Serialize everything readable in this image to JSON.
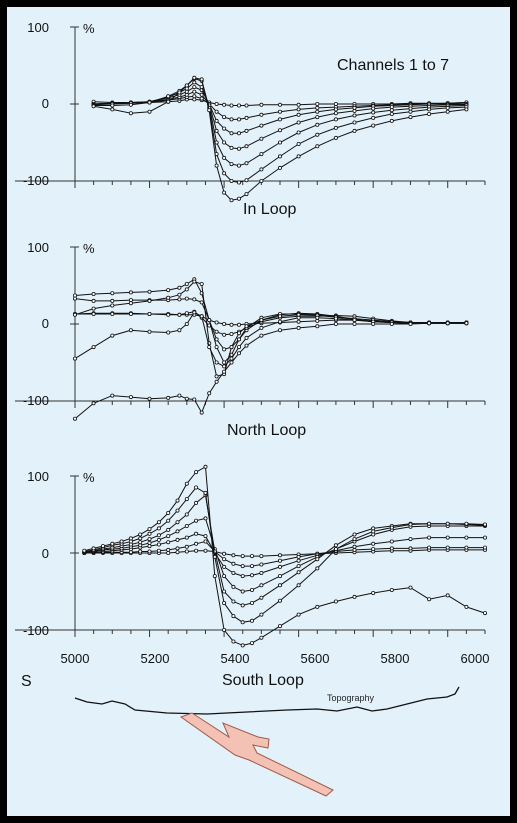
{
  "colors": {
    "background": "#e3f1fa",
    "line": "#111111",
    "body_fill": "#f4c2b5",
    "body_stroke": "#a05a4a"
  },
  "topography_label": "Topography",
  "direction_label": "S",
  "chart_data": [
    {
      "type": "line",
      "title": "In Loop",
      "ylabel": "%",
      "annotation": "Channels 1 to 7",
      "xlim": [
        5000,
        6100
      ],
      "ylim": [
        -100,
        100
      ],
      "yticks": [
        100,
        0,
        -100
      ],
      "grid": false,
      "x": [
        5050,
        5100,
        5150,
        5200,
        5250,
        5280,
        5300,
        5320,
        5340,
        5360,
        5380,
        5400,
        5420,
        5440,
        5460,
        5500,
        5550,
        5600,
        5650,
        5700,
        5750,
        5800,
        5850,
        5900,
        5950,
        6000,
        6050
      ],
      "series": [
        {
          "values": [
            3,
            2,
            2,
            2,
            3,
            4,
            6,
            6,
            5,
            2,
            0,
            -1,
            -2,
            -2,
            -2,
            -1,
            -1,
            -1,
            0,
            0,
            0,
            0,
            0,
            1,
            1,
            1,
            2
          ]
        },
        {
          "values": [
            0,
            1,
            1,
            2,
            5,
            7,
            9,
            10,
            7,
            0,
            -10,
            -17,
            -20,
            -20,
            -18,
            -14,
            -10,
            -7,
            -5,
            -4,
            -3,
            -2,
            -1,
            0,
            0,
            1,
            2
          ]
        },
        {
          "values": [
            0,
            1,
            2,
            3,
            6,
            9,
            12,
            16,
            12,
            0,
            -22,
            -32,
            -38,
            -38,
            -35,
            -28,
            -20,
            -14,
            -10,
            -7,
            -5,
            -3,
            -2,
            -1,
            0,
            0,
            0
          ]
        },
        {
          "values": [
            0,
            1,
            2,
            3,
            8,
            12,
            16,
            22,
            18,
            0,
            -35,
            -50,
            -57,
            -58,
            -55,
            -45,
            -34,
            -24,
            -17,
            -12,
            -9,
            -6,
            -4,
            -3,
            -2,
            -1,
            -1
          ]
        },
        {
          "values": [
            -1,
            0,
            1,
            3,
            9,
            15,
            20,
            28,
            22,
            -2,
            -50,
            -70,
            -78,
            -80,
            -77,
            -65,
            -50,
            -37,
            -27,
            -20,
            -15,
            -11,
            -8,
            -6,
            -4,
            -3,
            -2
          ]
        },
        {
          "values": [
            -2,
            -2,
            -1,
            2,
            10,
            17,
            24,
            33,
            30,
            -5,
            -65,
            -90,
            -100,
            -102,
            -99,
            -85,
            -68,
            -52,
            -40,
            -31,
            -24,
            -18,
            -13,
            -10,
            -7,
            -5,
            -4
          ]
        },
        {
          "values": [
            -3,
            -7,
            -12,
            -10,
            3,
            15,
            24,
            34,
            32,
            -8,
            -80,
            -115,
            -125,
            -123,
            -117,
            -100,
            -83,
            -68,
            -55,
            -44,
            -35,
            -28,
            -22,
            -17,
            -13,
            -10,
            -7
          ]
        }
      ]
    },
    {
      "type": "line",
      "title": "North Loop",
      "ylabel": "%",
      "xlim": [
        5000,
        6100
      ],
      "ylim": [
        -100,
        100
      ],
      "yticks": [
        100,
        0,
        -100
      ],
      "grid": false,
      "x": [
        5000,
        5050,
        5100,
        5150,
        5200,
        5250,
        5280,
        5300,
        5320,
        5340,
        5360,
        5380,
        5400,
        5420,
        5440,
        5460,
        5500,
        5550,
        5600,
        5650,
        5700,
        5750,
        5800,
        5850,
        5900,
        5950,
        6000,
        6050
      ],
      "series": [
        {
          "values": [
            13,
            14,
            14,
            14,
            13,
            13,
            12,
            12,
            12,
            10,
            5,
            2,
            0,
            -1,
            -1,
            0,
            1,
            2,
            3,
            4,
            5,
            5,
            4,
            3,
            2,
            2,
            2,
            2
          ]
        },
        {
          "values": [
            13,
            13,
            13,
            13,
            13,
            12,
            12,
            14,
            16,
            8,
            -2,
            -10,
            -14,
            -13,
            -10,
            -5,
            3,
            8,
            10,
            10,
            11,
            10,
            7,
            4,
            2,
            2,
            2,
            2
          ]
        },
        {
          "values": [
            33,
            30,
            30,
            31,
            31,
            31,
            32,
            33,
            32,
            28,
            5,
            -20,
            -33,
            -30,
            -20,
            -8,
            5,
            12,
            14,
            13,
            10,
            6,
            3,
            2,
            1,
            1,
            1,
            1
          ]
        },
        {
          "values": [
            37,
            39,
            40,
            41,
            42,
            44,
            47,
            52,
            58,
            40,
            5,
            -30,
            -50,
            -40,
            -20,
            -5,
            8,
            13,
            13,
            12,
            9,
            6,
            3,
            2,
            1,
            1,
            1,
            1
          ]
        },
        {
          "values": [
            12,
            20,
            24,
            27,
            30,
            34,
            38,
            45,
            55,
            52,
            -25,
            -68,
            -65,
            -30,
            -12,
            -3,
            5,
            10,
            12,
            11,
            9,
            7,
            5,
            3,
            2,
            2,
            2,
            2
          ]
        },
        {
          "values": [
            -45,
            -30,
            -15,
            -8,
            -10,
            -11,
            -8,
            0,
            15,
            10,
            -30,
            -50,
            -55,
            -45,
            -30,
            -18,
            -5,
            3,
            8,
            8,
            7,
            5,
            3,
            2,
            1,
            1,
            1,
            1
          ]
        },
        {
          "values": [
            -123,
            -103,
            -93,
            -95,
            -97,
            -96,
            -93,
            -97,
            -98,
            -115,
            -90,
            -75,
            -62,
            -50,
            -38,
            -28,
            -15,
            -8,
            -5,
            -3,
            0,
            0,
            0,
            0,
            0,
            1,
            1,
            1
          ]
        }
      ]
    },
    {
      "type": "line",
      "title": "South Loop",
      "ylabel": "%",
      "xlim": [
        5000,
        6100
      ],
      "ylim": [
        -100,
        100
      ],
      "yticks": [
        100,
        0,
        -100
      ],
      "xticks": [
        5000,
        5200,
        5400,
        5600,
        5800,
        6000
      ],
      "grid": false,
      "x": [
        5025,
        5050,
        5075,
        5100,
        5125,
        5150,
        5175,
        5200,
        5225,
        5250,
        5275,
        5300,
        5325,
        5350,
        5375,
        5400,
        5425,
        5450,
        5475,
        5500,
        5550,
        5600,
        5650,
        5700,
        5750,
        5800,
        5850,
        5900,
        5950,
        6000,
        6050,
        6100
      ],
      "series": [
        {
          "values": [
            0,
            0,
            0,
            0,
            0,
            0,
            0,
            0,
            0,
            0,
            1,
            2,
            3,
            3,
            2,
            -1,
            -3,
            -4,
            -4,
            -4,
            -3,
            -2,
            -1,
            0,
            1,
            2,
            3,
            3,
            4,
            4,
            4,
            4
          ]
        },
        {
          "values": [
            0,
            0,
            1,
            1,
            1,
            1,
            2,
            2,
            3,
            4,
            6,
            8,
            12,
            15,
            2,
            -8,
            -14,
            -17,
            -17,
            -15,
            -10,
            -5,
            -1,
            2,
            4,
            5,
            6,
            6,
            7,
            7,
            7,
            7
          ]
        },
        {
          "values": [
            0,
            1,
            2,
            3,
            4,
            5,
            7,
            9,
            11,
            14,
            17,
            20,
            25,
            22,
            0,
            -18,
            -26,
            -30,
            -29,
            -26,
            -18,
            -10,
            -3,
            3,
            8,
            12,
            15,
            18,
            20,
            20,
            20,
            20
          ]
        },
        {
          "values": [
            1,
            2,
            4,
            5,
            6,
            8,
            10,
            13,
            17,
            22,
            28,
            35,
            42,
            45,
            5,
            -30,
            -44,
            -50,
            -48,
            -42,
            -30,
            -17,
            -5,
            5,
            15,
            24,
            30,
            34,
            35,
            35,
            35,
            35
          ]
        },
        {
          "values": [
            1,
            3,
            5,
            7,
            9,
            11,
            14,
            18,
            23,
            30,
            40,
            50,
            65,
            75,
            2,
            -50,
            -63,
            -68,
            -65,
            -58,
            -42,
            -25,
            -8,
            10,
            24,
            32,
            35,
            38,
            38,
            38,
            37,
            36
          ]
        },
        {
          "values": [
            2,
            4,
            7,
            10,
            12,
            15,
            19,
            25,
            32,
            42,
            55,
            70,
            85,
            78,
            -5,
            -65,
            -82,
            -90,
            -88,
            -80,
            -62,
            -42,
            -20,
            5,
            18,
            28,
            33,
            37,
            38,
            38,
            38,
            37
          ]
        },
        {
          "values": [
            3,
            6,
            9,
            12,
            15,
            19,
            24,
            31,
            40,
            52,
            68,
            90,
            105,
            112,
            -30,
            -100,
            -115,
            -120,
            -117,
            -110,
            -95,
            -80,
            -70,
            -63,
            -57,
            -52,
            -48,
            -45,
            -60,
            -55,
            -70,
            -78
          ]
        }
      ]
    }
  ]
}
